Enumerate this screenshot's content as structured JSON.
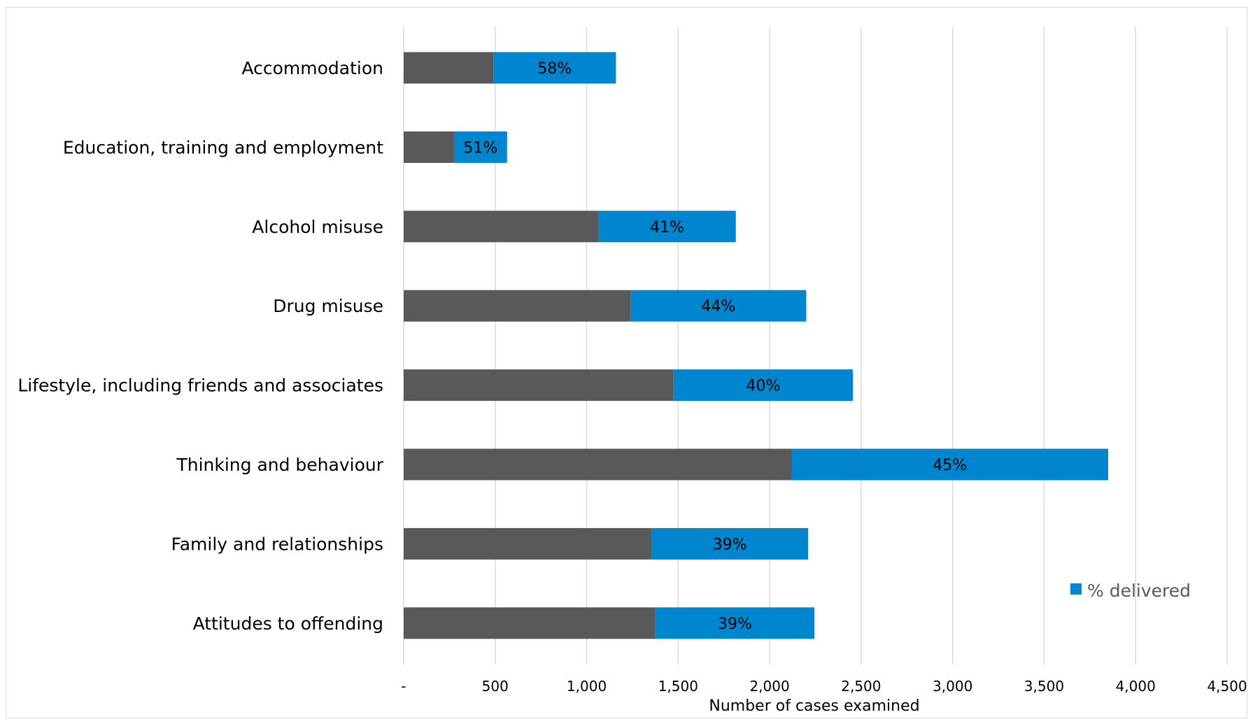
{
  "chart_data": {
    "type": "bar",
    "orientation": "horizontal",
    "stacked": true,
    "categories": [
      "Accommodation",
      "Education, training and employment",
      "Alcohol misuse",
      "Drug misuse",
      "Lifestyle, including friends and associates",
      "Thinking and behaviour",
      "Family and relationships",
      "Attitudes to offending"
    ],
    "series": [
      {
        "values": [
          490,
          275,
          1065,
          1240,
          1475,
          2120,
          1355,
          1375
        ],
        "color": "#58595b"
      },
      {
        "name": "% delivered",
        "values": [
          670,
          290,
          750,
          960,
          980,
          1730,
          855,
          870
        ],
        "color": "#0085cf",
        "data_labels": [
          "58%",
          "51%",
          "41%",
          "44%",
          "40%",
          "45%",
          "39%",
          "39%"
        ]
      }
    ],
    "xlabel": "Number of cases examined",
    "ylabel": "",
    "xlim": [
      0,
      4500
    ],
    "x_ticks": [
      0,
      500,
      1000,
      1500,
      2000,
      2500,
      3000,
      3500,
      4000,
      4500
    ],
    "x_tick_labels": [
      "-",
      "500",
      "1,000",
      "1,500",
      "2,000",
      "2,500",
      "3,000",
      "3,500",
      "4,000",
      "4,500"
    ],
    "grid": "vertical",
    "legend": "bottom-right, shows '% delivered' only"
  }
}
